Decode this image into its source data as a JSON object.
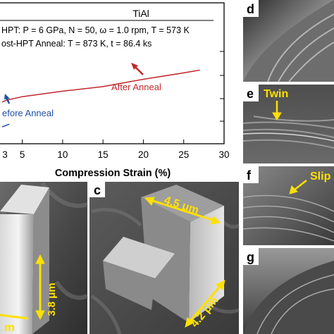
{
  "chart": {
    "material": "TiAl",
    "hpt_line": "HPT: P = 6 GPa, N = 50, ω = 1.0 rpm, T = 573 K",
    "anneal_line": "ost-HPT Anneal: T = 873 K, t = 86.4 ks",
    "before_label": "efore Anneal",
    "after_label": "After Anneal",
    "xlabel": "Compression Strain (%)",
    "xticks": [
      "5",
      "10",
      "15",
      "20",
      "25",
      "30"
    ],
    "partial_tick": "3"
  },
  "chart_data": {
    "type": "line",
    "title": "TiAl",
    "xlabel": "Compression Strain (%)",
    "xlim": [
      2.5,
      30
    ],
    "series": [
      {
        "name": "After Anneal",
        "color": "#c0282d",
        "x": [
          2.5,
          3,
          5,
          10,
          15,
          20,
          25,
          27
        ],
        "y": [
          0.3,
          0.32,
          0.36,
          0.42,
          0.47,
          0.55,
          0.62,
          0.65
        ]
      },
      {
        "name": "Before Anneal",
        "color": "#1f4fa8",
        "x": [
          2.5,
          3.4
        ],
        "y": [
          0.03,
          0.06
        ]
      }
    ],
    "grid": false
  },
  "panels": {
    "b": {
      "dim1": "3.8 μm",
      "dim2": "m"
    },
    "c": {
      "label": "c",
      "dim1": "4.5 μm",
      "dim2": "4.2 μm"
    },
    "d": {
      "label": "d"
    },
    "e": {
      "label": "e",
      "annotation": "Twin"
    },
    "f": {
      "label": "f",
      "annotation": "Slip"
    },
    "g": {
      "label": "g"
    }
  },
  "colors": {
    "after": "#c0282d",
    "before": "#1f4fa8",
    "annotation": "#ffe000"
  }
}
